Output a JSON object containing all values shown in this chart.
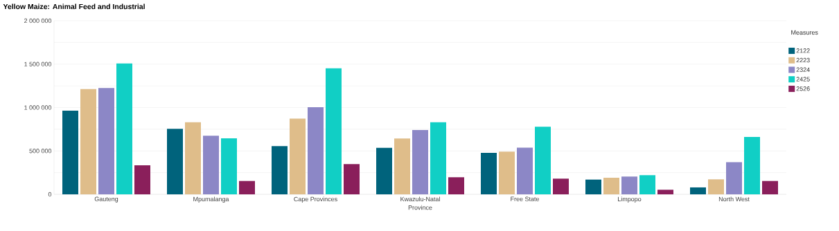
{
  "chart_data": {
    "type": "bar",
    "title": "Yellow Maize: Animal Feed and Industrial",
    "xlabel": "Province",
    "legend_title": "Measures",
    "categories": [
      "Gauteng",
      "Mpumalanga",
      "Cape Provinces",
      "Kwazulu-Natal",
      "Free State",
      "Limpopo",
      "North West"
    ],
    "series": [
      {
        "name": "2122",
        "color": "#00637c",
        "values": [
          965000,
          755000,
          556000,
          535000,
          479000,
          170000,
          80000
        ]
      },
      {
        "name": "2223",
        "color": "#dfbd8a",
        "values": [
          1213000,
          830000,
          872000,
          644000,
          492000,
          191000,
          173000
        ]
      },
      {
        "name": "2324",
        "color": "#8c87c6",
        "values": [
          1226000,
          676000,
          1003000,
          742000,
          537000,
          205000,
          370000
        ]
      },
      {
        "name": "2425",
        "color": "#11cfc5",
        "values": [
          1508000,
          646000,
          1452000,
          830000,
          779000,
          221000,
          662000
        ]
      },
      {
        "name": "2526",
        "color": "#8a1f5b",
        "values": [
          335000,
          154000,
          348000,
          197000,
          181000,
          53000,
          154000
        ]
      }
    ],
    "ylim": [
      0,
      2000000
    ],
    "yticks": [
      {
        "value": 0,
        "label": "0"
      },
      {
        "value": 250000,
        "label": null
      },
      {
        "value": 500000,
        "label": "500 000"
      },
      {
        "value": 750000,
        "label": null
      },
      {
        "value": 1000000,
        "label": "1 000 000"
      },
      {
        "value": 1250000,
        "label": null
      },
      {
        "value": 1500000,
        "label": "1 500 000"
      },
      {
        "value": 1750000,
        "label": null
      },
      {
        "value": 2000000,
        "label": "2 000 000"
      }
    ],
    "grid": "y",
    "legend": "right"
  }
}
